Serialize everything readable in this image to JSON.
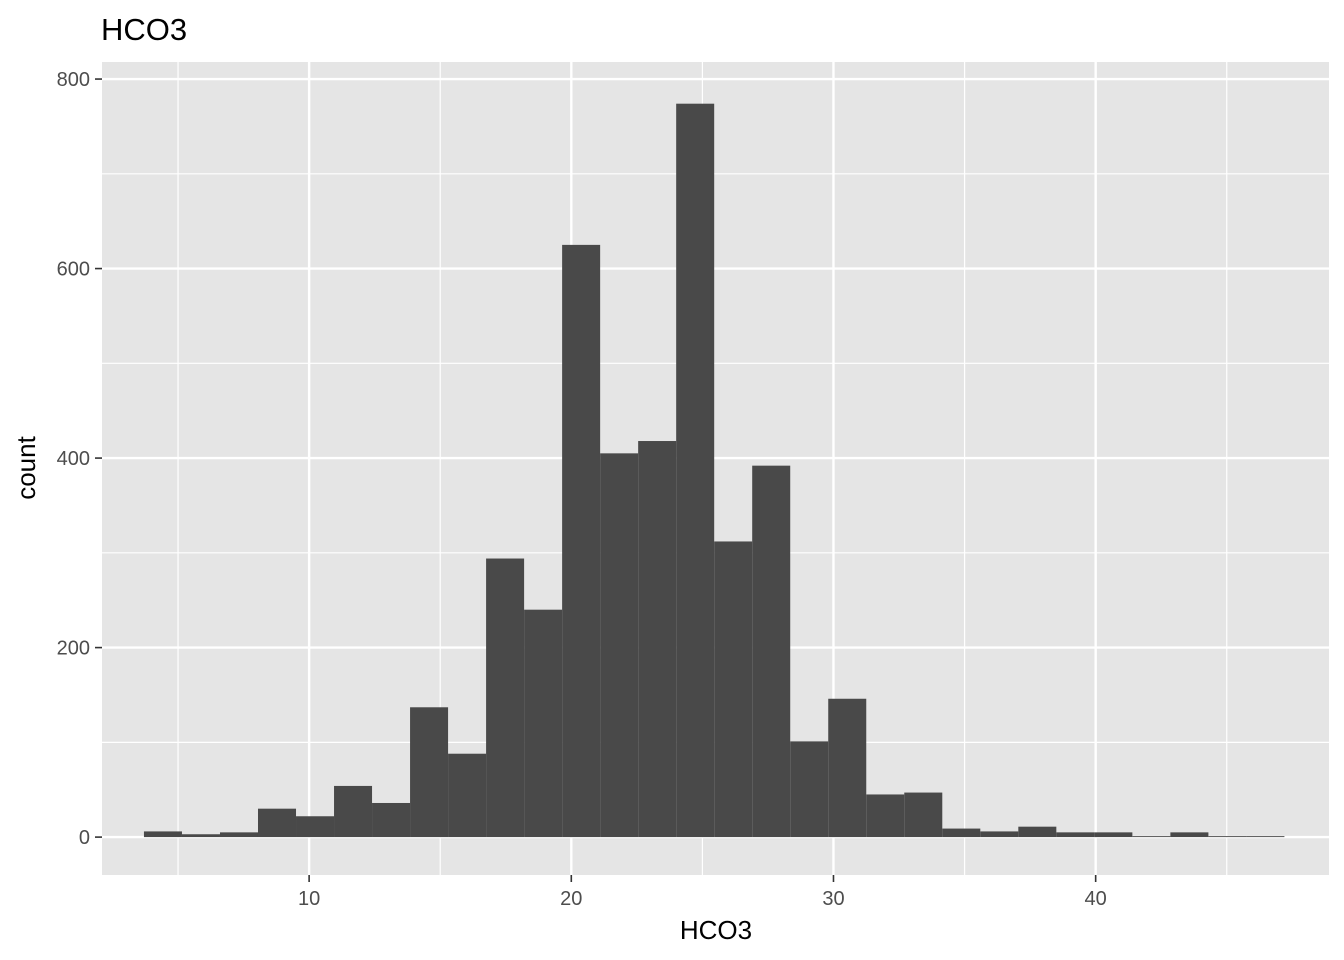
{
  "chart_data": {
    "type": "bar",
    "subtype": "histogram",
    "title": "HCO3",
    "xlabel": "HCO3",
    "ylabel": "count",
    "xlim": [
      2.1,
      48.9
    ],
    "ylim": [
      -40,
      818
    ],
    "x_ticks": [
      10,
      20,
      30,
      40
    ],
    "y_ticks": [
      0,
      200,
      400,
      600,
      800
    ],
    "grid": true,
    "legend": "none",
    "bin_width": 1.45,
    "bins": [
      {
        "x0": 3.7,
        "x1": 5.15,
        "count": 6
      },
      {
        "x0": 5.15,
        "x1": 6.6,
        "count": 3
      },
      {
        "x0": 6.6,
        "x1": 8.05,
        "count": 5
      },
      {
        "x0": 8.05,
        "x1": 9.5,
        "count": 30
      },
      {
        "x0": 9.5,
        "x1": 10.95,
        "count": 22
      },
      {
        "x0": 10.95,
        "x1": 12.4,
        "count": 54
      },
      {
        "x0": 12.4,
        "x1": 13.85,
        "count": 36
      },
      {
        "x0": 13.85,
        "x1": 15.3,
        "count": 137
      },
      {
        "x0": 15.3,
        "x1": 16.75,
        "count": 88
      },
      {
        "x0": 16.75,
        "x1": 18.2,
        "count": 294
      },
      {
        "x0": 18.2,
        "x1": 19.65,
        "count": 240
      },
      {
        "x0": 19.65,
        "x1": 21.1,
        "count": 625
      },
      {
        "x0": 21.1,
        "x1": 22.55,
        "count": 405
      },
      {
        "x0": 22.55,
        "x1": 24.0,
        "count": 418
      },
      {
        "x0": 24.0,
        "x1": 25.45,
        "count": 774
      },
      {
        "x0": 25.45,
        "x1": 26.9,
        "count": 312
      },
      {
        "x0": 26.9,
        "x1": 28.35,
        "count": 392
      },
      {
        "x0": 28.35,
        "x1": 29.8,
        "count": 101
      },
      {
        "x0": 29.8,
        "x1": 31.25,
        "count": 146
      },
      {
        "x0": 31.25,
        "x1": 32.7,
        "count": 45
      },
      {
        "x0": 32.7,
        "x1": 34.15,
        "count": 47
      },
      {
        "x0": 34.15,
        "x1": 35.6,
        "count": 9
      },
      {
        "x0": 35.6,
        "x1": 37.05,
        "count": 6
      },
      {
        "x0": 37.05,
        "x1": 38.5,
        "count": 11
      },
      {
        "x0": 38.5,
        "x1": 39.95,
        "count": 5
      },
      {
        "x0": 39.95,
        "x1": 41.4,
        "count": 5
      },
      {
        "x0": 41.4,
        "x1": 42.85,
        "count": 1
      },
      {
        "x0": 42.85,
        "x1": 44.3,
        "count": 5
      },
      {
        "x0": 44.3,
        "x1": 45.75,
        "count": 1
      },
      {
        "x0": 45.75,
        "x1": 47.2,
        "count": 1
      }
    ],
    "colors": {
      "panel": "#e5e5e5",
      "grid": "#ffffff",
      "bar": "#494949",
      "tick": "#333333"
    }
  }
}
